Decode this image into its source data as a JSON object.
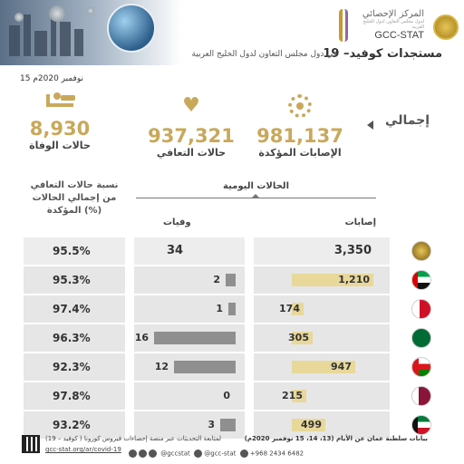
{
  "header": {
    "org_ar": "المركز الإحصائي",
    "org_sub": "لدول مجلس التعاون لدول الخليج العربية",
    "org_en": "GCC-STAT",
    "title": "مستجدات كوفيد– 19",
    "subtitle": "في دول مجلس التعاون لدول الخليج العربية",
    "date": "15 نوفمبر 2020م"
  },
  "totals": {
    "label": "إجمالي",
    "confirmed": {
      "value": "981,137",
      "label": "الإصابات المؤكدة",
      "icon": "virus-icon"
    },
    "recovered": {
      "value": "937,321",
      "label": "حالات التعافي",
      "icon": "heartbeat-icon"
    },
    "deaths": {
      "value": "8,930",
      "label": "حالات الوفاة",
      "icon": "bed-icon"
    }
  },
  "table": {
    "daily_header": "الحالات اليومية",
    "cases_header": "إصابات",
    "deaths_header": "وفيات",
    "pct_header_line1": "نسبة حالات التعافي",
    "pct_header_line2": "من إجمالي الحالات",
    "pct_header_line3": "المؤكدة (%)",
    "rows": [
      {
        "country": "GCC",
        "cases": "3,350",
        "cases_num": 3350,
        "deaths": "34",
        "deaths_num": 34,
        "recovery_pct": "95.5%",
        "flag": "gcc-emblem"
      },
      {
        "country": "UAE",
        "cases": "1,210",
        "cases_num": 1210,
        "deaths": "2",
        "deaths_num": 2,
        "recovery_pct": "95.3%",
        "flag": "uae-flag"
      },
      {
        "country": "Bahrain",
        "cases": "174",
        "cases_num": 174,
        "deaths": "1",
        "deaths_num": 1,
        "recovery_pct": "97.4%",
        "flag": "bahrain-flag"
      },
      {
        "country": "Saudi Arabia",
        "cases": "305",
        "cases_num": 305,
        "deaths": "16",
        "deaths_num": 16,
        "recovery_pct": "96.3%",
        "flag": "saudi-flag"
      },
      {
        "country": "Oman",
        "cases": "947",
        "cases_num": 947,
        "deaths": "12",
        "deaths_num": 12,
        "recovery_pct": "92.3%",
        "flag": "oman-flag"
      },
      {
        "country": "Qatar",
        "cases": "215",
        "cases_num": 215,
        "deaths": "0",
        "deaths_num": 0,
        "recovery_pct": "97.8%",
        "flag": "qatar-flag"
      },
      {
        "country": "Kuwait",
        "cases": "499",
        "cases_num": 499,
        "deaths": "3",
        "deaths_num": 3,
        "recovery_pct": "93.2%",
        "flag": "kuwait-flag"
      }
    ]
  },
  "footer": {
    "note": "بيانات سلطنة عمان عن الأيام (13، 14، 15 نوفمبر 2020م)",
    "follow_text": "لمتابعة التحديثات عبر منصة إحصاءات فيروس كورونا ( كوفيد – 19)",
    "link": "gcc-stat.org/ar/covid-19",
    "social_handle": "@gccstat",
    "social_handle2": "@gcc-stat",
    "phone": "+968 2434 6482"
  },
  "colors": {
    "accent_gold": "#c9a85a",
    "case_bar": "#e8d89a",
    "death_bar": "#8f8f8f",
    "cell_bg": "#e6e6e6"
  }
}
